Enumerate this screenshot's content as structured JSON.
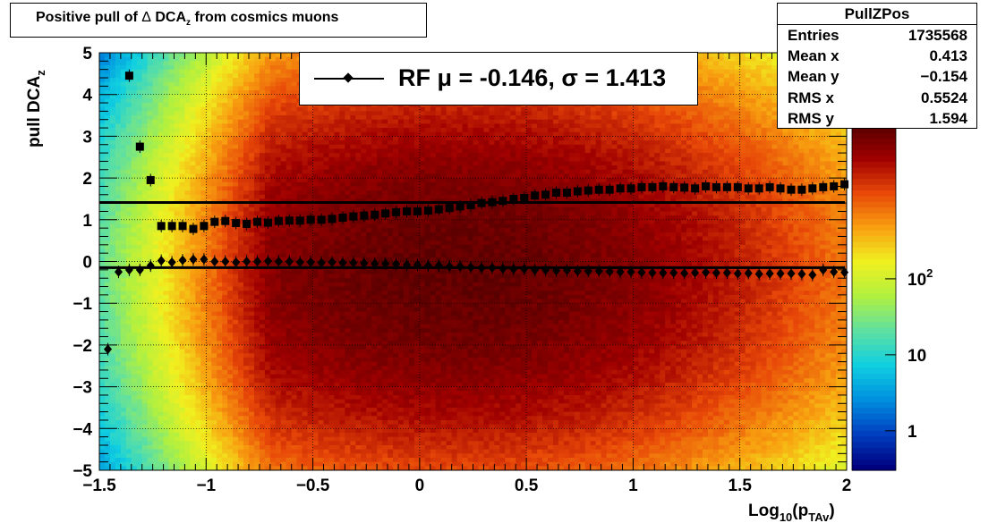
{
  "title": {
    "prefix": "Positive pull of ",
    "delta": "Δ",
    "quantity": " DCA",
    "sub": "z",
    "suffix": "  from cosmics muons"
  },
  "stats_box": {
    "name": "PullZPos",
    "rows": [
      {
        "label": "Entries",
        "value": "1735568"
      },
      {
        "label": "Mean x",
        "value": "0.413"
      },
      {
        "label": "Mean y",
        "value": "−0.154"
      },
      {
        "label": "RMS x",
        "value": "0.5524"
      },
      {
        "label": "RMS y",
        "value": "1.594"
      }
    ]
  },
  "legend": {
    "text": "RF μ = -0.146, σ =   1.413"
  },
  "chart_data": {
    "type": "heatmap",
    "xlabel": {
      "main": "Log",
      "sub1": "10",
      "open": "(p",
      "sub2": "TAv",
      "close": ")"
    },
    "ylabel": {
      "main": "pull DCA",
      "sub": "z"
    },
    "xlim": [
      -1.5,
      2.0
    ],
    "ylim": [
      -5,
      5
    ],
    "x_tick_labels": [
      "−1.5",
      "−1",
      "−0.5",
      "0",
      "0.5",
      "1",
      "1.5",
      "2"
    ],
    "x_ticks": [
      -1.5,
      -1,
      -0.5,
      0,
      0.5,
      1,
      1.5,
      2
    ],
    "y_tick_labels": [
      "−5",
      "−4",
      "−3",
      "−2",
      "−1",
      "0",
      "1",
      "2",
      "3",
      "4",
      "5"
    ],
    "y_ticks": [
      -5,
      -4,
      -3,
      -2,
      -1,
      0,
      1,
      2,
      3,
      4,
      5
    ],
    "z_scale": "log",
    "z_tick_labels": [
      {
        "base": "1",
        "exp": ""
      },
      {
        "base": "10",
        "exp": ""
      },
      {
        "base": "10",
        "exp": "2"
      }
    ],
    "z_ticks": [
      1,
      10,
      100
    ],
    "grid": true,
    "color_palette": [
      "#00007f",
      "#0040c0",
      "#0090e0",
      "#10d0e0",
      "#60e0a0",
      "#b0f040",
      "#f0f020",
      "#f8a010",
      "#e84808",
      "#a00000",
      "#550000"
    ],
    "fit_lines": [
      {
        "y": -0.146,
        "x_range": [
          -1.5,
          2.0
        ]
      },
      {
        "y": 1.413,
        "x_range": [
          -1.5,
          2.0
        ]
      }
    ],
    "series": [
      {
        "marker": "diamond",
        "x": [
          -1.46,
          -1.41,
          -1.36,
          -1.31,
          -1.26,
          -1.21,
          -1.16,
          -1.11,
          -1.06,
          -1.01,
          -0.96,
          -0.91,
          -0.86,
          -0.81,
          -0.76,
          -0.71,
          -0.66,
          -0.61,
          -0.56,
          -0.51,
          -0.46,
          -0.41,
          -0.36,
          -0.31,
          -0.26,
          -0.21,
          -0.16,
          -0.11,
          -0.06,
          -0.01,
          0.04,
          0.09,
          0.14,
          0.19,
          0.24,
          0.29,
          0.34,
          0.39,
          0.44,
          0.49,
          0.54,
          0.59,
          0.64,
          0.69,
          0.74,
          0.79,
          0.84,
          0.89,
          0.94,
          0.99,
          1.04,
          1.09,
          1.14,
          1.19,
          1.24,
          1.29,
          1.34,
          1.39,
          1.44,
          1.49,
          1.54,
          1.59,
          1.64,
          1.69,
          1.74,
          1.79,
          1.84,
          1.89,
          1.94,
          1.99
        ],
        "y": [
          -2.1,
          -0.25,
          -0.2,
          -0.2,
          -0.1,
          0.02,
          -0.02,
          0.03,
          0.05,
          0.05,
          0.0,
          0.0,
          -0.02,
          0.0,
          0.0,
          0.01,
          0.0,
          0.0,
          -0.02,
          -0.02,
          -0.03,
          -0.02,
          -0.03,
          -0.03,
          -0.04,
          -0.05,
          -0.05,
          -0.06,
          -0.08,
          -0.08,
          -0.1,
          -0.1,
          -0.12,
          -0.12,
          -0.14,
          -0.15,
          -0.15,
          -0.17,
          -0.18,
          -0.18,
          -0.2,
          -0.2,
          -0.22,
          -0.21,
          -0.23,
          -0.23,
          -0.23,
          -0.24,
          -0.25,
          -0.25,
          -0.26,
          -0.27,
          -0.27,
          -0.27,
          -0.28,
          -0.27,
          -0.26,
          -0.27,
          -0.27,
          -0.29,
          -0.28,
          -0.3,
          -0.29,
          -0.29,
          -0.29,
          -0.3,
          -0.32,
          -0.2,
          -0.25,
          -0.26
        ]
      },
      {
        "marker": "square",
        "x": [
          -1.36,
          -1.31,
          -1.26,
          -1.21,
          -1.16,
          -1.11,
          -1.06,
          -1.01,
          -0.96,
          -0.91,
          -0.86,
          -0.81,
          -0.76,
          -0.71,
          -0.66,
          -0.61,
          -0.56,
          -0.51,
          -0.46,
          -0.41,
          -0.36,
          -0.31,
          -0.26,
          -0.21,
          -0.16,
          -0.11,
          -0.06,
          -0.01,
          0.04,
          0.09,
          0.14,
          0.19,
          0.24,
          0.29,
          0.34,
          0.39,
          0.44,
          0.49,
          0.54,
          0.59,
          0.64,
          0.69,
          0.74,
          0.79,
          0.84,
          0.89,
          0.94,
          0.99,
          1.04,
          1.09,
          1.14,
          1.19,
          1.24,
          1.29,
          1.34,
          1.39,
          1.44,
          1.49,
          1.54,
          1.59,
          1.64,
          1.69,
          1.74,
          1.79,
          1.84,
          1.89,
          1.94,
          1.99
        ],
        "y": [
          4.45,
          2.75,
          1.95,
          0.85,
          0.85,
          0.85,
          0.78,
          0.85,
          0.95,
          0.97,
          0.92,
          0.9,
          0.95,
          0.93,
          0.97,
          0.98,
          0.98,
          1.0,
          1.0,
          1.02,
          1.05,
          1.08,
          1.1,
          1.12,
          1.15,
          1.18,
          1.2,
          1.2,
          1.22,
          1.25,
          1.28,
          1.32,
          1.35,
          1.4,
          1.42,
          1.45,
          1.5,
          1.52,
          1.58,
          1.6,
          1.65,
          1.65,
          1.68,
          1.7,
          1.72,
          1.72,
          1.75,
          1.75,
          1.78,
          1.78,
          1.8,
          1.78,
          1.77,
          1.75,
          1.8,
          1.78,
          1.78,
          1.78,
          1.75,
          1.75,
          1.78,
          1.75,
          1.72,
          1.72,
          1.75,
          1.78,
          1.8,
          1.85
        ]
      }
    ]
  }
}
